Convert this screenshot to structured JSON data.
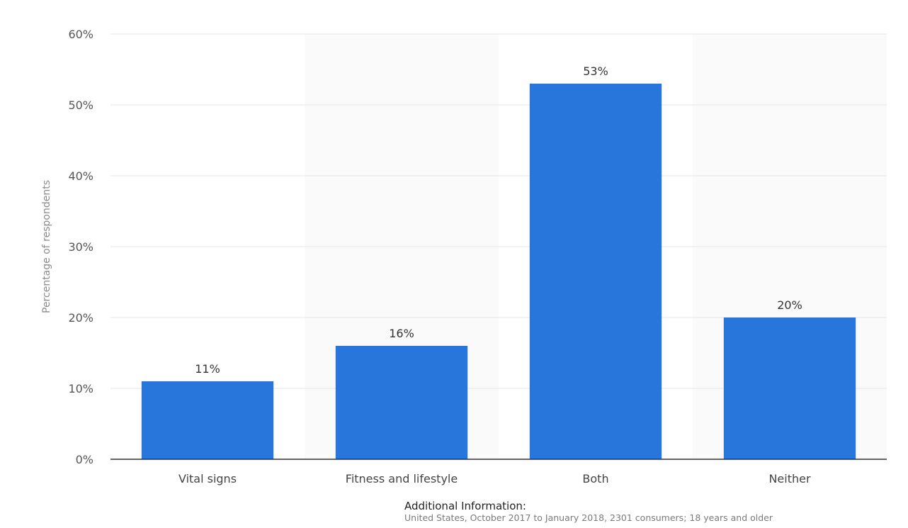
{
  "chart_data": {
    "type": "bar",
    "categories": [
      "Vital signs",
      "Fitness and lifestyle",
      "Both",
      "Neither"
    ],
    "values": [
      11,
      16,
      53,
      20
    ],
    "data_labels": [
      "11%",
      "16%",
      "53%",
      "20%"
    ],
    "ylabel": "Percentage of respondents",
    "ylim": [
      0,
      60
    ],
    "yticks": [
      0,
      10,
      20,
      30,
      40,
      50,
      60
    ],
    "ytick_labels": [
      "0%",
      "10%",
      "20%",
      "30%",
      "40%",
      "50%",
      "60%"
    ],
    "grid": true,
    "bar_color": "#2875dc"
  },
  "additional_info": {
    "title": "Additional Information:",
    "text": "United States, October 2017 to January 2018, 2301 consumers; 18 years and older"
  }
}
